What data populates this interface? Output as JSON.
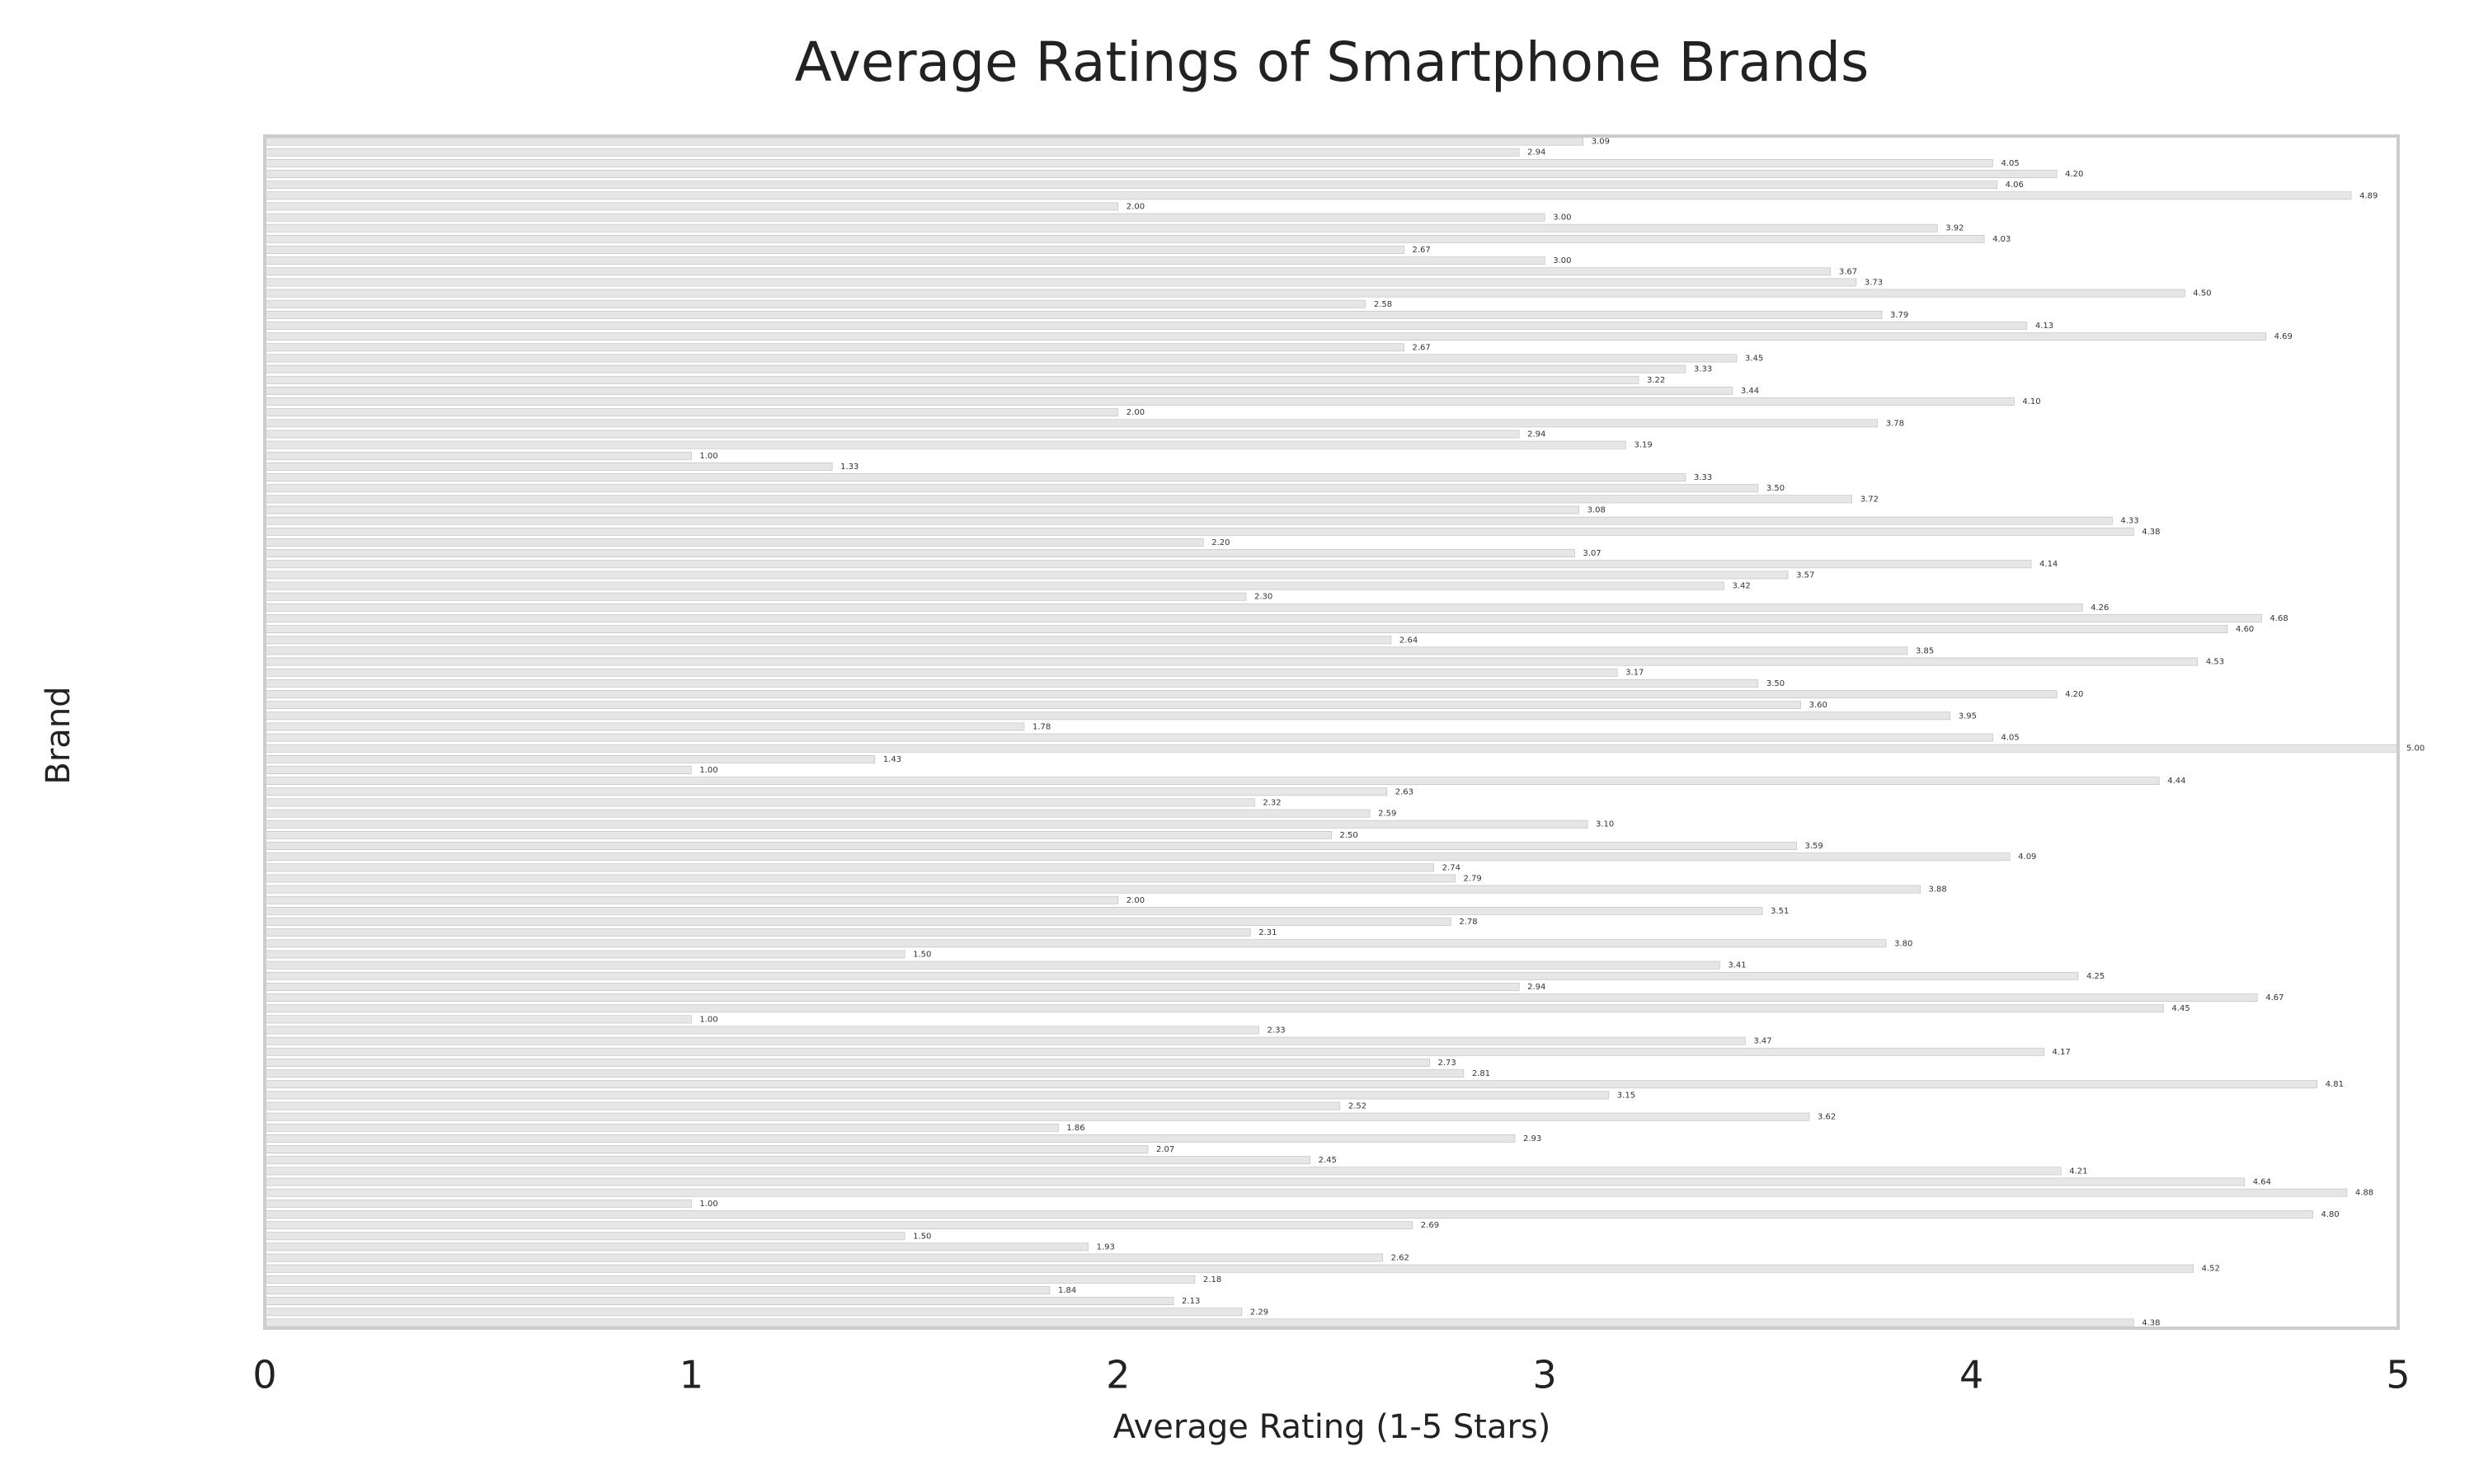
{
  "chart_data": {
    "type": "barh",
    "title": "Average Ratings of Smartphone Brands",
    "xlabel": "Average Rating (1-5 Stars)",
    "ylabel": "Brand",
    "xlim": [
      0,
      5
    ],
    "xticks": [
      0,
      1,
      2,
      3,
      4,
      5
    ],
    "color": "#e6e6e6",
    "grid": false,
    "categories": [
      null,
      null,
      null,
      null,
      null,
      null,
      null,
      null,
      null,
      null,
      null,
      null,
      null,
      null,
      null,
      null,
      null,
      null,
      null,
      null,
      null,
      null,
      null,
      null,
      null,
      null,
      null,
      null,
      null,
      null,
      null,
      null,
      null,
      null,
      null,
      null,
      null,
      null,
      null,
      null,
      null,
      null,
      null,
      null,
      null,
      null,
      null,
      null,
      null,
      null,
      null,
      null,
      null,
      null,
      null,
      null,
      null,
      null,
      null,
      null,
      null,
      null,
      null,
      null,
      null,
      null,
      null,
      null,
      null,
      null,
      null,
      null,
      null,
      null,
      null,
      null,
      null,
      null,
      null,
      null,
      null,
      null,
      null,
      null,
      null,
      null,
      null,
      null,
      null,
      null,
      null,
      null,
      null,
      null,
      null,
      null,
      null,
      null,
      null,
      null,
      null,
      null,
      null,
      null,
      null,
      null,
      null,
      null,
      null,
      null
    ],
    "values": [
      3.09,
      2.94,
      4.05,
      4.2,
      4.06,
      4.89,
      2.0,
      3.0,
      3.92,
      4.03,
      2.67,
      3.0,
      3.67,
      3.73,
      4.5,
      2.58,
      3.79,
      4.13,
      4.69,
      2.67,
      3.45,
      3.33,
      3.22,
      3.44,
      4.1,
      2.0,
      3.78,
      2.94,
      3.19,
      1.0,
      1.33,
      3.33,
      3.5,
      3.72,
      3.08,
      4.33,
      4.38,
      2.2,
      3.07,
      4.14,
      3.57,
      3.42,
      2.3,
      4.26,
      4.68,
      4.6,
      2.64,
      3.85,
      4.53,
      3.17,
      3.5,
      4.2,
      3.6,
      3.95,
      1.78,
      4.05,
      5.0,
      1.43,
      1.0,
      4.44,
      2.63,
      2.32,
      2.59,
      3.1,
      2.5,
      3.59,
      4.09,
      2.74,
      2.79,
      3.88,
      2.0,
      3.51,
      2.78,
      2.31,
      3.8,
      1.5,
      3.41,
      4.25,
      2.94,
      4.67,
      4.45,
      1.0,
      2.33,
      3.47,
      4.17,
      2.73,
      2.81,
      4.81,
      3.15,
      2.52,
      3.62,
      1.86,
      2.93,
      2.07,
      2.45,
      4.21,
      4.64,
      4.88,
      1.0,
      4.8,
      2.69,
      1.5,
      1.93,
      2.62,
      4.52,
      2.18,
      1.84,
      2.13,
      2.29,
      4.38
    ],
    "value_labels": [
      "3.09",
      "2.94",
      "4.05",
      "4.20",
      "4.06",
      "4.89",
      "2.00",
      "3.00",
      "3.92",
      "4.03",
      "2.67",
      "3.00",
      "3.67",
      "3.73",
      "4.50",
      "2.58",
      "3.79",
      "4.13",
      "4.69",
      "2.67",
      "3.45",
      "3.33",
      "3.22",
      "3.44",
      "4.10",
      "2.00",
      "3.78",
      "2.94",
      "3.19",
      "1.00",
      "1.33",
      "3.33",
      "3.50",
      "3.72",
      "3.08",
      "4.33",
      "4.38",
      "2.20",
      "3.07",
      "4.14",
      "3.57",
      "3.42",
      "2.30",
      "4.26",
      "4.68",
      "4.60",
      "2.64",
      "3.85",
      "4.53",
      "3.17",
      "3.50",
      "4.20",
      "3.60",
      "3.95",
      "1.78",
      "4.05",
      "5.00",
      "1.43",
      "1.00",
      "4.44",
      "2.63",
      "2.32",
      "2.59",
      "3.10",
      "2.50",
      "3.59",
      "4.09",
      "2.74",
      "2.79",
      "3.88",
      "2.00",
      "3.51",
      "2.78",
      "2.31",
      "3.80",
      "1.50",
      "3.41",
      "4.25",
      "2.94",
      "4.67",
      "4.45",
      "1.00",
      "2.33",
      "3.47",
      "4.17",
      "2.73",
      "2.81",
      "4.81",
      "3.15",
      "2.52",
      "3.62",
      "1.86",
      "2.93",
      "2.07",
      "2.45",
      "4.21",
      "4.64",
      "4.88",
      "1.00",
      "4.80",
      "2.69",
      "1.50",
      "1.93",
      "2.62",
      "4.52",
      "2.18",
      "1.84",
      "2.13",
      "2.29",
      "4.38"
    ]
  }
}
